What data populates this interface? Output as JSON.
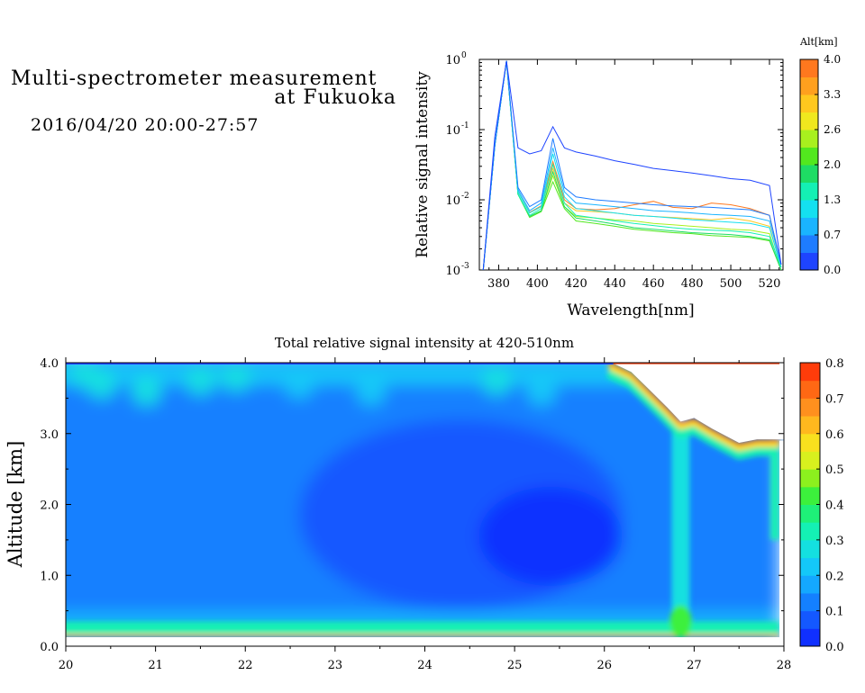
{
  "header": {
    "title_line1": "Multi-spectrometer measurement",
    "title_line2": "at Fukuoka",
    "time_range": "2016/04/20 20:00-27:57"
  },
  "colors": {
    "alt_scale": [
      "#1e44ff",
      "#1e7cff",
      "#1ab4ff",
      "#14e0f0",
      "#14f0b4",
      "#1edc64",
      "#52e81e",
      "#a8f01e",
      "#f0e81e",
      "#ffc81e",
      "#ffa01e",
      "#ff781e"
    ],
    "intensity_scale": [
      "#1030ff",
      "#1458ff",
      "#1480ff",
      "#14a8ff",
      "#14c8f8",
      "#14e0e0",
      "#14f0b4",
      "#1ef078",
      "#3cf03c",
      "#8cf01e",
      "#d8f01e",
      "#f8e01e",
      "#ffb81e",
      "#ff901e",
      "#ff6814",
      "#ff3c0a"
    ]
  },
  "chart_data": [
    {
      "type": "line",
      "xlabel": "Wavelength[nm]",
      "ylabel": "Relative signal intensity",
      "xlim": [
        370,
        527
      ],
      "ylim": [
        0.001,
        1
      ],
      "y_scale": "log",
      "x_ticks": [
        380,
        400,
        420,
        440,
        460,
        480,
        500,
        520
      ],
      "y_ticks": [
        {
          "value": 0.001,
          "base": "10",
          "exp": "-3"
        },
        {
          "value": 0.01,
          "base": "10",
          "exp": "-2"
        },
        {
          "value": 0.1,
          "base": "10",
          "exp": "-1"
        },
        {
          "value": 1,
          "base": "10",
          "exp": "0"
        }
      ],
      "colorbar": {
        "title": "Alt[km]",
        "range": [
          0,
          4
        ],
        "labels": [
          "0.0",
          "0.7",
          "1.3",
          "2.0",
          "2.6",
          "3.3",
          "4.0"
        ]
      },
      "x": [
        372,
        378,
        384,
        390,
        396,
        402,
        408,
        414,
        420,
        430,
        440,
        450,
        460,
        470,
        480,
        490,
        500,
        510,
        520,
        526
      ],
      "series": [
        {
          "color": "#1e44ff",
          "values": [
            0.001,
            0.08,
            0.95,
            0.055,
            0.045,
            0.05,
            0.11,
            0.055,
            0.048,
            0.042,
            0.036,
            0.032,
            0.028,
            0.026,
            0.024,
            0.022,
            0.02,
            0.019,
            0.016,
            0.0012
          ]
        },
        {
          "color": "#1e7cff",
          "values": [
            0.001,
            0.06,
            0.95,
            0.015,
            0.008,
            0.01,
            0.075,
            0.015,
            0.011,
            0.01,
            0.0095,
            0.009,
            0.0085,
            0.0082,
            0.008,
            0.0078,
            0.0075,
            0.0072,
            0.006,
            0.0012
          ]
        },
        {
          "color": "#1ab4ff",
          "values": [
            0.001,
            0.06,
            0.95,
            0.014,
            0.007,
            0.009,
            0.055,
            0.013,
            0.009,
            0.0085,
            0.008,
            0.0075,
            0.007,
            0.0068,
            0.0065,
            0.0062,
            0.006,
            0.0058,
            0.005,
            0.0012
          ]
        },
        {
          "color": "#14e0f0",
          "values": [
            0.001,
            0.06,
            0.95,
            0.013,
            0.0065,
            0.008,
            0.045,
            0.011,
            0.0075,
            0.007,
            0.0065,
            0.006,
            0.0058,
            0.0055,
            0.0052,
            0.005,
            0.0048,
            0.0046,
            0.004,
            0.0011
          ]
        },
        {
          "color": "#14f0b4",
          "values": [
            0.001,
            0.06,
            0.95,
            0.012,
            0.006,
            0.0075,
            0.032,
            0.009,
            0.006,
            0.0055,
            0.005,
            0.0046,
            0.0043,
            0.004,
            0.0038,
            0.0037,
            0.0036,
            0.0034,
            0.003,
            0.0011
          ]
        },
        {
          "color": "#1edc64",
          "values": [
            0.001,
            0.06,
            0.95,
            0.012,
            0.0058,
            0.007,
            0.025,
            0.008,
            0.0055,
            0.005,
            0.0045,
            0.004,
            0.0038,
            0.0036,
            0.0034,
            0.0033,
            0.0032,
            0.003,
            0.0027,
            0.001
          ]
        },
        {
          "color": "#52e81e",
          "values": [
            0.001,
            0.06,
            0.95,
            0.012,
            0.0056,
            0.0068,
            0.018,
            0.0075,
            0.005,
            0.0046,
            0.0042,
            0.0038,
            0.0036,
            0.0034,
            0.0033,
            0.0031,
            0.003,
            0.0029,
            0.0026,
            0.001
          ]
        },
        {
          "color": "#a8f01e",
          "values": [
            0.001,
            0.06,
            0.95,
            0.012,
            0.0058,
            0.007,
            0.022,
            0.008,
            0.0058,
            0.0055,
            0.0052,
            0.005,
            0.0046,
            0.0044,
            0.0042,
            0.004,
            0.0038,
            0.0037,
            0.0033,
            0.001
          ]
        },
        {
          "color": "#ffc81e",
          "values": [
            0.001,
            0.06,
            0.95,
            0.013,
            0.0065,
            0.008,
            0.028,
            0.009,
            0.007,
            0.0068,
            0.0065,
            0.006,
            0.0058,
            0.0056,
            0.0054,
            0.0052,
            0.0055,
            0.005,
            0.0042,
            0.0011
          ]
        },
        {
          "color": "#ff781e",
          "values": [
            0.001,
            0.06,
            0.95,
            0.013,
            0.0066,
            0.0082,
            0.035,
            0.01,
            0.0075,
            0.0072,
            0.0075,
            0.0085,
            0.0095,
            0.0078,
            0.0075,
            0.009,
            0.0085,
            0.0075,
            0.006,
            0.0012
          ]
        }
      ]
    },
    {
      "type": "heatmap",
      "title": "Total relative signal intensity at 420-510nm",
      "ylabel": "Altitude [km]",
      "xlim": [
        20,
        28
      ],
      "ylim": [
        0,
        4
      ],
      "x_ticks": [
        "20",
        "21",
        "22",
        "23",
        "24",
        "25",
        "26",
        "27",
        "28"
      ],
      "y_ticks": [
        "0.0",
        "1.0",
        "2.0",
        "3.0",
        "4.0"
      ],
      "colorbar": {
        "range": [
          0,
          0.8
        ],
        "labels": [
          "0.0",
          "0.1",
          "0.2",
          "0.3",
          "0.4",
          "0.5",
          "0.6",
          "0.7",
          "0.8"
        ]
      },
      "summary": {
        "background_value": 0.15,
        "core_min_value": 0.05,
        "core_altitude_range": [
          1.2,
          2.6
        ],
        "core_time_range": [
          22.5,
          26.2
        ],
        "surface_layer_value": 0.35,
        "surface_layer_altitude": [
          0.15,
          0.35
        ],
        "cloud_top_high_value": 0.8,
        "data_end_time": 27.95,
        "cloud_edge": [
          [
            26.05,
            4.0
          ],
          [
            26.3,
            3.85
          ],
          [
            26.5,
            3.6
          ],
          [
            26.7,
            3.35
          ],
          [
            26.85,
            3.15
          ],
          [
            27.0,
            3.2
          ],
          [
            27.2,
            3.05
          ],
          [
            27.35,
            2.95
          ],
          [
            27.5,
            2.85
          ],
          [
            27.7,
            2.9
          ],
          [
            27.95,
            2.9
          ]
        ]
      }
    }
  ]
}
